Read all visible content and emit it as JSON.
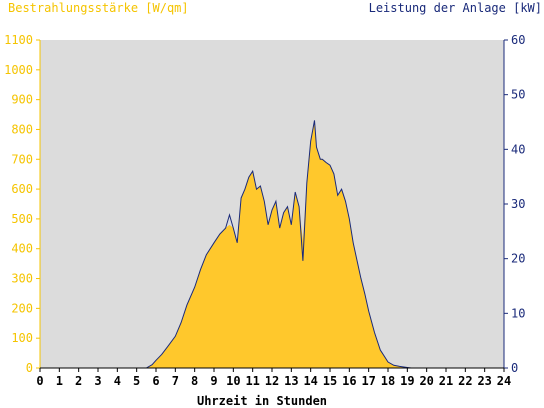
{
  "chart_data": {
    "type": "area",
    "title": "",
    "ylabel_left": "Bestrahlungsstärke [W/qm]",
    "ylabel_right": "Leistung der Anlage [kW]",
    "xlabel": "Uhrzeit in Stunden",
    "xlim": [
      0,
      24
    ],
    "ylim_left": [
      0,
      1100
    ],
    "ylim_right": [
      0,
      60
    ],
    "x_ticks": [
      "0",
      "1",
      "2",
      "3",
      "4",
      "5",
      "6",
      "7",
      "8",
      "9",
      "10",
      "11",
      "12",
      "13",
      "14",
      "15",
      "16",
      "17",
      "18",
      "19",
      "20",
      "21",
      "22",
      "23",
      "24"
    ],
    "y_ticks_left": [
      "0",
      "100",
      "200",
      "300",
      "400",
      "500",
      "600",
      "700",
      "800",
      "900",
      "1000",
      "1100"
    ],
    "y_ticks_right": [
      "0",
      "10",
      "20",
      "30",
      "40",
      "50",
      "60"
    ],
    "grid": false,
    "colors": {
      "plot_bg": "#dcdcdc",
      "irradiance_fill": "#ffc82c",
      "power_line": "#1a2a7a",
      "left_axis": "#f5c400",
      "right_axis": "#1a2a7a"
    },
    "series": [
      {
        "name": "Bestrahlungsstärke",
        "axis": "left",
        "x": [
          5.5,
          5.8,
          6,
          6.3,
          6.6,
          7,
          7.3,
          7.6,
          8,
          8.3,
          8.6,
          9,
          9.3,
          9.6,
          9.8,
          10,
          10.2,
          10.4,
          10.6,
          10.8,
          11,
          11.2,
          11.4,
          11.6,
          11.8,
          12,
          12.2,
          12.4,
          12.6,
          12.8,
          13,
          13.2,
          13.4,
          13.6,
          13.8,
          14,
          14.2,
          14.3,
          14.5,
          14.6,
          14.8,
          15,
          15.2,
          15.4,
          15.6,
          15.8,
          16,
          16.2,
          16.4,
          16.6,
          16.8,
          17,
          17.3,
          17.6,
          18,
          18.3,
          18.6,
          19,
          19.2
        ],
        "y": [
          0,
          10,
          25,
          45,
          70,
          105,
          150,
          210,
          270,
          330,
          380,
          420,
          450,
          470,
          480,
          470,
          420,
          570,
          600,
          640,
          660,
          600,
          610,
          560,
          480,
          530,
          560,
          470,
          520,
          540,
          480,
          590,
          540,
          430,
          620,
          760,
          830,
          740,
          700,
          700,
          690,
          680,
          650,
          580,
          600,
          560,
          500,
          420,
          360,
          300,
          250,
          190,
          120,
          60,
          20,
          10,
          5,
          2,
          0
        ]
      },
      {
        "name": "Leistung",
        "axis": "right",
        "x": [
          5.5,
          5.8,
          6,
          6.3,
          6.6,
          7,
          7.3,
          7.6,
          8,
          8.3,
          8.6,
          9,
          9.3,
          9.6,
          9.8,
          10,
          10.2,
          10.4,
          10.6,
          10.8,
          11,
          11.2,
          11.4,
          11.6,
          11.8,
          12,
          12.2,
          12.4,
          12.6,
          12.8,
          13,
          13.2,
          13.4,
          13.6,
          13.8,
          14,
          14.2,
          14.3,
          14.5,
          14.6,
          14.8,
          15,
          15.2,
          15.4,
          15.6,
          15.8,
          16,
          16.2,
          16.4,
          16.6,
          16.8,
          17,
          17.3,
          17.6,
          18,
          18.3,
          18.6,
          19,
          19.2
        ],
        "y": [
          0,
          0.6,
          1.4,
          2.5,
          3.9,
          5.8,
          8.3,
          11.5,
          14.8,
          18,
          20.7,
          22.9,
          24.5,
          25.6,
          28,
          25.6,
          22.9,
          31.1,
          32.7,
          34.9,
          36,
          32.7,
          33.3,
          30.5,
          26.2,
          28.9,
          30.5,
          25.6,
          28.4,
          29.5,
          26.2,
          32.2,
          29.5,
          19.6,
          33.8,
          41.5,
          45.3,
          40.4,
          38.2,
          38.2,
          37.6,
          37.1,
          35.5,
          31.6,
          32.7,
          30.5,
          27.3,
          22.9,
          19.6,
          16.4,
          13.6,
          10.4,
          6.5,
          3.3,
          1.1,
          0.5,
          0.3,
          0.1,
          0
        ]
      }
    ]
  }
}
